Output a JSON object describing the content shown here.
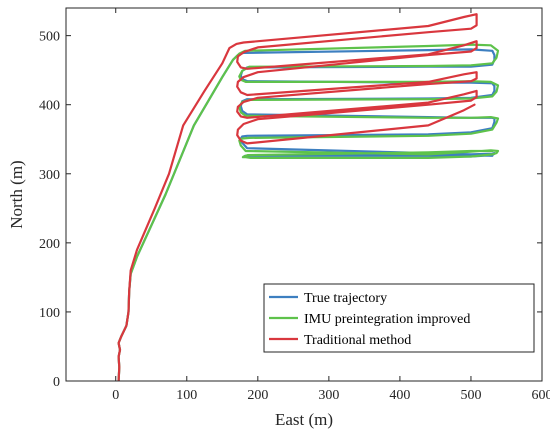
{
  "chart_data": {
    "type": "line",
    "title": "",
    "xlabel": "East (m)",
    "ylabel": "North (m)",
    "xlim": [
      -70,
      600
    ],
    "ylim": [
      0,
      540
    ],
    "xticks": [
      0,
      100,
      200,
      300,
      400,
      500,
      600
    ],
    "yticks": [
      0,
      100,
      200,
      300,
      400,
      500
    ],
    "grid": false,
    "legend_position": "bottom-right",
    "series": [
      {
        "name": "True trajectory",
        "color": "#3d7fc0",
        "x": [
          4,
          5,
          4,
          6,
          4,
          8,
          15,
          18,
          19,
          21,
          30,
          50,
          70,
          90,
          110,
          130,
          150,
          165,
          172,
          180,
          440,
          500,
          530,
          533,
          533,
          530,
          500,
          440,
          185,
          178,
          176,
          178,
          185,
          440,
          500,
          530,
          533,
          533,
          530,
          500,
          440,
          185,
          178,
          176,
          178,
          185,
          440,
          500,
          530,
          533,
          533,
          530,
          500,
          440,
          185,
          178,
          176,
          178,
          185,
          440,
          500,
          530,
          533,
          533,
          530,
          500,
          440,
          190,
          185,
          182,
          183,
          188,
          440,
          500,
          530
        ],
        "y": [
          0,
          20,
          35,
          45,
          55,
          65,
          80,
          100,
          130,
          155,
          180,
          225,
          270,
          320,
          370,
          405,
          440,
          465,
          472,
          475,
          479,
          480,
          478,
          472,
          465,
          458,
          455,
          455,
          454,
          449,
          442,
          437,
          434,
          432,
          432,
          431,
          427,
          420,
          414,
          410,
          409,
          408,
          405,
          398,
          391,
          386,
          382,
          381,
          381,
          380,
          375,
          366,
          360,
          357,
          355,
          354,
          351,
          345,
          337,
          330,
          328,
          329,
          330,
          329,
          327,
          325,
          326,
          326,
          326,
          326,
          326,
          326,
          327,
          327,
          326
        ]
      },
      {
        "name": "IMU preintegration improved",
        "color": "#5ec24b",
        "x": [
          4,
          5,
          4,
          6,
          4,
          8,
          15,
          18,
          19,
          21,
          30,
          50,
          70,
          90,
          110,
          130,
          150,
          165,
          174,
          182,
          440,
          500,
          528,
          538,
          536,
          530,
          500,
          440,
          188,
          178,
          174,
          176,
          183,
          440,
          500,
          528,
          538,
          536,
          530,
          500,
          440,
          188,
          178,
          174,
          176,
          183,
          440,
          500,
          528,
          538,
          536,
          530,
          500,
          440,
          188,
          178,
          174,
          176,
          183,
          440,
          500,
          528,
          538,
          536,
          530,
          500,
          440,
          190,
          183,
          179,
          180,
          186,
          440,
          500,
          530
        ],
        "y": [
          0,
          20,
          35,
          45,
          55,
          65,
          80,
          100,
          130,
          155,
          180,
          225,
          270,
          320,
          370,
          405,
          440,
          465,
          474,
          478,
          485,
          487,
          486,
          478,
          468,
          460,
          457,
          456,
          455,
          449,
          441,
          436,
          433,
          433,
          434,
          433,
          428,
          419,
          412,
          409,
          408,
          407,
          404,
          397,
          389,
          384,
          381,
          381,
          382,
          380,
          374,
          364,
          358,
          355,
          352,
          351,
          348,
          341,
          333,
          328,
          332,
          334,
          333,
          330,
          328,
          325,
          323,
          323,
          324,
          324,
          325,
          327,
          331,
          333,
          333
        ]
      },
      {
        "name": "Traditional method",
        "color": "#d9373e",
        "x": [
          4,
          5,
          4,
          6,
          4,
          8,
          15,
          18,
          19,
          21,
          30,
          55,
          75,
          95,
          125,
          150,
          160,
          170,
          180,
          440,
          490,
          508,
          508,
          500,
          440,
          200,
          180,
          172,
          171,
          176,
          185,
          440,
          490,
          508,
          508,
          500,
          440,
          200,
          180,
          172,
          171,
          176,
          185,
          440,
          490,
          508,
          508,
          500,
          440,
          200,
          180,
          172,
          171,
          176,
          185,
          440,
          490,
          508,
          508,
          500,
          440,
          200,
          180,
          172,
          171,
          176,
          185,
          440,
          490,
          505
        ],
        "y": [
          0,
          20,
          35,
          45,
          55,
          65,
          80,
          100,
          130,
          160,
          190,
          250,
          300,
          370,
          420,
          460,
          482,
          488,
          490,
          514,
          527,
          531,
          515,
          510,
          505,
          483,
          476,
          470,
          462,
          454,
          452,
          473,
          486,
          492,
          482,
          477,
          472,
          447,
          440,
          433,
          426,
          418,
          414,
          433,
          444,
          447,
          438,
          434,
          430,
          410,
          404,
          397,
          390,
          383,
          381,
          403,
          415,
          420,
          411,
          406,
          400,
          379,
          372,
          364,
          356,
          348,
          344,
          370,
          392,
          400
        ]
      }
    ]
  }
}
